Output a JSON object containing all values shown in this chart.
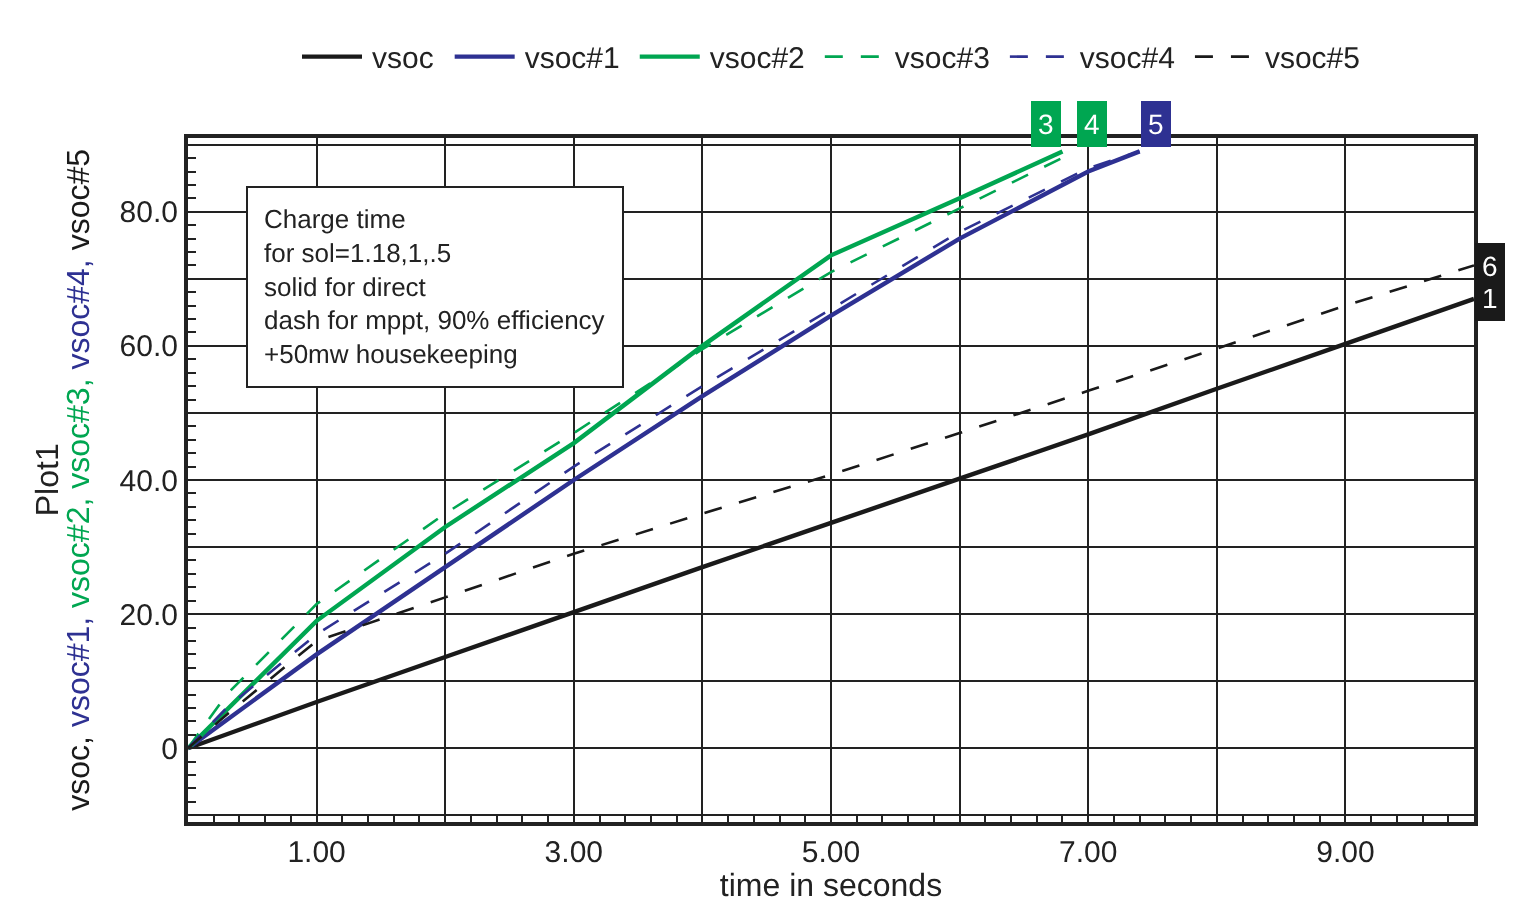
{
  "chart_data": {
    "type": "line",
    "xlabel": "time in seconds",
    "ylabel": "vsoc, vsoc#1, vsoc#2, vsoc#3, vsoc#4, vsoc#5",
    "xlim": [
      0,
      10
    ],
    "ylim": [
      -11,
      91
    ],
    "xticks": [
      {
        "value": 0,
        "label": null
      },
      {
        "value": 1,
        "label": "1.00"
      },
      {
        "value": 2,
        "label": null
      },
      {
        "value": 3,
        "label": "3.00"
      },
      {
        "value": 4,
        "label": null
      },
      {
        "value": 5,
        "label": "5.00"
      },
      {
        "value": 6,
        "label": null
      },
      {
        "value": 7,
        "label": "7.00"
      },
      {
        "value": 8,
        "label": null
      },
      {
        "value": 9,
        "label": "9.00"
      },
      {
        "value": 10,
        "label": null
      }
    ],
    "yticks": [
      {
        "value": -10,
        "label": null
      },
      0,
      {
        "value": 10,
        "label": null
      },
      {
        "value": 20,
        "label": "20.0"
      },
      {
        "value": 30,
        "label": null
      },
      {
        "value": 40,
        "label": "40.0"
      },
      {
        "value": 50,
        "label": null
      },
      {
        "value": 60,
        "label": "60.0"
      },
      {
        "value": 70,
        "label": null
      },
      {
        "value": 80,
        "label": "80.0"
      },
      {
        "value": 90,
        "label": null
      }
    ],
    "grid": true,
    "legend": "top",
    "marker": "none",
    "series": [
      {
        "name": "vsoc",
        "color": "#1a1a1a",
        "line_style": "solid",
        "x": [
          0,
          1,
          2,
          3,
          4,
          5,
          6,
          7,
          8,
          9,
          10
        ],
        "values": [
          0,
          6.9,
          13.6,
          20.3,
          27,
          33.6,
          40.2,
          46.8,
          53.6,
          60.3,
          67
        ]
      },
      {
        "name": "vsoc#1",
        "color": "#2e3192",
        "line_style": "solid",
        "x": [
          0,
          1,
          2,
          3,
          4,
          5,
          6,
          7,
          7.4
        ],
        "values": [
          0,
          14,
          27,
          40,
          52.5,
          64.5,
          76,
          86,
          89
        ]
      },
      {
        "name": "vsoc#2",
        "color": "#00a651",
        "line_style": "solid",
        "x": [
          0,
          1,
          2,
          3,
          4,
          5,
          6,
          6.8
        ],
        "values": [
          0,
          19,
          33,
          45.5,
          60,
          73.5,
          82,
          89
        ]
      },
      {
        "name": "vsoc#3",
        "color": "#00a651",
        "line_style": "dashed",
        "x": [
          0,
          0.3,
          1,
          2,
          3,
          4,
          5,
          6,
          6.9
        ],
        "values": [
          0,
          8,
          21.5,
          35,
          47,
          59.5,
          71,
          80.5,
          89
        ]
      },
      {
        "name": "vsoc#4",
        "color": "#2e3192",
        "line_style": "dashed",
        "x": [
          0,
          0.3,
          1,
          2,
          3,
          4,
          5,
          6,
          7,
          7.4
        ],
        "values": [
          0,
          6,
          17,
          29,
          42,
          54,
          65.5,
          77,
          86.5,
          89
        ]
      },
      {
        "name": "vsoc#5",
        "color": "#1a1a1a",
        "line_style": "dashed",
        "x": [
          0,
          0.3,
          1,
          2,
          3,
          4,
          5,
          6,
          7,
          8,
          9,
          10
        ],
        "values": [
          0,
          5,
          16,
          22.5,
          29,
          35,
          40.8,
          47,
          53.3,
          59.6,
          66,
          72
        ]
      }
    ],
    "annotations": [
      "Charge time\nfor sol=1.18,1,.5\nsolid for direct\ndash for mppt, 90% efficiency\n+50mw housekeeping",
      "Plot1",
      {
        "text": "1",
        "x": 10,
        "y": 67
      },
      {
        "text": "3",
        "x": 6.8,
        "y": 89
      },
      {
        "text": "4",
        "x": 6.9,
        "y": 89
      },
      {
        "text": "5",
        "x": 7.4,
        "y": 89
      },
      {
        "text": "6",
        "x": 10,
        "y": 72
      }
    ]
  }
}
